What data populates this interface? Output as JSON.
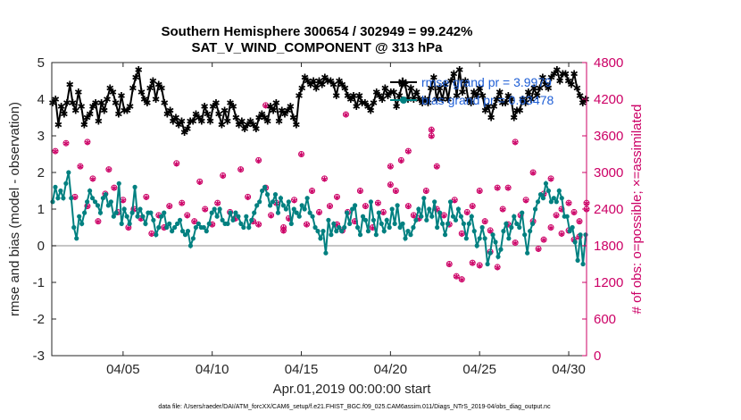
{
  "chart_data": {
    "type": "line",
    "title": "Southern Hemisphere 300654 / 302949 = 99.242%",
    "subtitle": "SAT_V_WIND_COMPONENT @ 313 hPa",
    "xlabel": "Apr.01,2019 00:00:00 start",
    "ylabel_left": "rmse and bias (model - observation)",
    "ylabel_right": "# of obs: o=possible; ×=assimilated",
    "footnote": "data file: /Users/raeder/DAI/ATM_forcXX/CAM6_setup/f.e21.FHIST_BGC.f09_025.CAM6assim.011/Diags_NTrS_2019-04/obs_diag_output.nc",
    "x_range_days": [
      1,
      31
    ],
    "ylim_left": [
      -3,
      5
    ],
    "ylim_right": [
      0,
      4800
    ],
    "left_ticks": [
      "-3",
      "-2",
      "-1",
      "0",
      "1",
      "2",
      "3",
      "4",
      "5"
    ],
    "right_ticks": [
      "0",
      "600",
      "1200",
      "1800",
      "2400",
      "3000",
      "3600",
      "4200",
      "4800"
    ],
    "x_tick_days": [
      5,
      10,
      15,
      20,
      25,
      30
    ],
    "x_tick_labels": [
      "04/05",
      "04/10",
      "04/15",
      "04/20",
      "04/25",
      "04/30"
    ],
    "legend": [
      "rmse grand pr = 3.9979",
      "bias grand pr = 0.63478"
    ],
    "colors": {
      "rmse": "#000000",
      "bias": "#008080",
      "obs": "#cc0066",
      "zero": "#b3b3b3"
    },
    "rmse": [
      3.9,
      4.0,
      3.3,
      3.8,
      3.6,
      3.9,
      4.4,
      3.9,
      3.7,
      4.2,
      3.8,
      3.3,
      3.5,
      3.6,
      3.8,
      3.9,
      3.4,
      3.9,
      3.7,
      4.0,
      4.3,
      4.2,
      3.9,
      3.6,
      4.1,
      3.7,
      3.7,
      3.8,
      4.3,
      4.6,
      4.8,
      4.2,
      4.0,
      3.9,
      4.3,
      4.5,
      4.0,
      4.4,
      4.3,
      3.9,
      3.6,
      3.7,
      3.4,
      3.5,
      3.3,
      3.4,
      3.1,
      3.2,
      3.4,
      3.4,
      3.6,
      3.5,
      3.4,
      3.8,
      3.6,
      3.4,
      3.8,
      3.9,
      3.6,
      3.3,
      3.7,
      3.4,
      3.9,
      3.8,
      3.5,
      3.3,
      3.4,
      3.2,
      3.3,
      3.4,
      3.3,
      3.2,
      3.5,
      3.6,
      3.5,
      3.4,
      3.8,
      3.7,
      3.9,
      3.4,
      3.7,
      3.6,
      3.7,
      3.8,
      3.5,
      3.3,
      4.1,
      4.3,
      4.6,
      4.5,
      4.4,
      4.5,
      4.3,
      4.5,
      4.4,
      4.6,
      4.5,
      4.5,
      4.4,
      4.1,
      4.5,
      4.4,
      4.3,
      4.1,
      4.0,
      4.1,
      3.8,
      4.1,
      3.9,
      3.9,
      3.8,
      3.7,
      3.9,
      4.2,
      4.1,
      4.0,
      4.3,
      4.1,
      4.2,
      4.2,
      3.8,
      4.1,
      4.4,
      4.4,
      4.0,
      4.3,
      4.0,
      4.2,
      4.0,
      3.9,
      4.0,
      3.9,
      4.3,
      4.6,
      4.0,
      4.3,
      4.0,
      4.4,
      4.0,
      4.5,
      4.7,
      4.1,
      4.8,
      4.2,
      4.5,
      4.0,
      3.9,
      4.2,
      4.1,
      4.3,
      4.1,
      3.7,
      3.8,
      3.5,
      3.8,
      4.0,
      4.2,
      3.9,
      3.9,
      4.1,
      4.0,
      3.5,
      3.7,
      3.7,
      4.0,
      3.9,
      4.2,
      4.0,
      4.3,
      4.1,
      4.3,
      4.6,
      4.4,
      4.3,
      4.6,
      4.7,
      4.8,
      4.5,
      4.7,
      4.7,
      4.5,
      4.4,
      4.7,
      4.3,
      4.1,
      3.9,
      4.0
    ],
    "bias": [
      1.2,
      1.6,
      1.3,
      1.5,
      1.3,
      1.7,
      2.0,
      1.3,
      0.5,
      0.2,
      0.8,
      0.6,
      0.9,
      1.2,
      1.5,
      1.3,
      1.2,
      1.1,
      0.9,
      1.3,
      1.4,
      1.1,
      1.2,
      0.8,
      0.9,
      1.7,
      0.6,
      1.0,
      0.8,
      0.6,
      0.9,
      1.6,
      0.8,
      1.0,
      0.8,
      0.6,
      0.9,
      0.9,
      0.7,
      0.3,
      0.5,
      0.8,
      0.9,
      0.5,
      0.6,
      0.4,
      0.5,
      0.6,
      0.7,
      0.4,
      0.3,
      0.4,
      0.0,
      0.2,
      0.5,
      0.6,
      0.5,
      0.5,
      0.4,
      0.6,
      0.9,
      1.0,
      0.8,
      1.0,
      0.7,
      0.6,
      0.6,
      0.9,
      0.7,
      0.9,
      0.8,
      0.6,
      0.5,
      0.8,
      0.5,
      0.7,
      0.9,
      1.1,
      1.2,
      1.5,
      1.6,
      1.4,
      1.1,
      1.2,
      1.4,
      0.9,
      1.3,
      1.1,
      1.0,
      1.2,
      0.6,
      1.0,
      0.9,
      0.8,
      1.1,
      1.0,
      1.3,
      0.9,
      0.8,
      0.5,
      0.4,
      0.2,
      0.4,
      -0.2,
      0.7,
      0.3,
      0.6,
      0.4,
      0.5,
      0.4,
      0.5,
      0.9,
      0.6,
      1.0,
      1.1,
      0.5,
      0.3,
      0.8,
      0.7,
      0.4,
      1.2,
      0.7,
      0.3,
      0.9,
      0.6,
      0.4,
      0.7,
      0.5,
      1.0,
      0.6,
      1.1,
      0.5,
      0.6,
      0.2,
      0.4,
      0.3,
      0.5,
      0.7,
      1.0,
      0.8,
      1.3,
      0.7,
      1.0,
      0.8,
      1.2,
      0.5,
      0.9,
      0.6,
      0.3,
      0.6,
      1.2,
      0.8,
      0.7,
      1.0,
      0.8,
      0.6,
      0.2,
      0.6,
      0.8,
      0.4,
      0.0,
      0.2,
      0.5,
      0.2,
      -0.5,
      -0.2,
      0.3,
      0.1,
      -0.3,
      -0.1,
      0.4,
      0.6,
      0.2,
      0.5,
      0.8,
      0.6,
      0.5,
      0.9,
      0.3,
      -0.2,
      0.4,
      0.6,
      1.0,
      1.2,
      1.4,
      1.3,
      1.7,
      1.5,
      1.2,
      1.3,
      1.2,
      1.5,
      1.3,
      0.8,
      0.8,
      0.4,
      0.5,
      0.1,
      -0.4,
      0.3,
      -0.5,
      0.3
    ],
    "obs_days": [
      1.2,
      1.8,
      2.3,
      2.6,
      3.0,
      3.3,
      3.6,
      4.0,
      4.2,
      4.5,
      4.7,
      5.0,
      5.3,
      5.6,
      6.0,
      6.3,
      6.6,
      7.0,
      7.3,
      7.6,
      8.0,
      8.3,
      8.6,
      9.0,
      9.3,
      9.6,
      10.0,
      10.3,
      10.6,
      11.0,
      11.3,
      11.6,
      12.0,
      12.3,
      12.6,
      13.0,
      13.3,
      13.6,
      14.0,
      14.3,
      14.6,
      15.0,
      15.3,
      15.6,
      16.0,
      16.3,
      16.6,
      17.0,
      17.3,
      17.6,
      18.0,
      18.3,
      18.6,
      19.0,
      19.3,
      19.6,
      20.0,
      20.3,
      20.6,
      21.0,
      21.3,
      21.6,
      22.0,
      22.3,
      22.6,
      23.0,
      23.3,
      23.6,
      24.0,
      24.3,
      24.6,
      25.0,
      25.3,
      25.6,
      26.0,
      26.3,
      26.6,
      27.0,
      27.3,
      27.6,
      28.0,
      28.3,
      28.6,
      29.0,
      29.3,
      29.6,
      30.0,
      30.3,
      30.6,
      31.0
    ],
    "obs_counts": [
      3350,
      3480,
      2600,
      3100,
      2450,
      2900,
      2200,
      2650,
      3050,
      2750,
      2350,
      2550,
      2100,
      2400,
      2250,
      2600,
      2000,
      2300,
      2100,
      2450,
      3150,
      2500,
      2300,
      2200,
      2850,
      2400,
      2150,
      2500,
      2950,
      2350,
      2250,
      3050,
      2600,
      2200,
      2150,
      2750,
      2300,
      2500,
      2050,
      2250,
      2550,
      3300,
      2150,
      2700,
      2350,
      2900,
      2450,
      2600,
      2050,
      2350,
      2200,
      2700,
      2450,
      2100,
      2500,
      2350,
      2800,
      2700,
      3200,
      2450,
      2300,
      2250,
      2700,
      3700,
      2400,
      2300,
      2150,
      2550,
      2000,
      2350,
      2450,
      2700,
      2200,
      2050,
      2750,
      2400,
      2150,
      1850,
      2300,
      2550,
      2200,
      1750,
      1900,
      2100,
      2300,
      2000,
      2500,
      1900,
      2200,
      2400
    ],
    "obs_extra": [
      {
        "day": 3.0,
        "count": 3500
      },
      {
        "day": 12.6,
        "count": 3200
      },
      {
        "day": 14.0,
        "count": 2100
      },
      {
        "day": 17.0,
        "count": 2150
      },
      {
        "day": 20.0,
        "count": 3100
      },
      {
        "day": 21.0,
        "count": 3350
      },
      {
        "day": 22.3,
        "count": 3600
      },
      {
        "day": 22.6,
        "count": 3100
      },
      {
        "day": 23.3,
        "count": 1500
      },
      {
        "day": 23.7,
        "count": 1300
      },
      {
        "day": 24.0,
        "count": 1250
      },
      {
        "day": 24.6,
        "count": 1520
      },
      {
        "day": 25.0,
        "count": 1480
      },
      {
        "day": 25.6,
        "count": 1700
      },
      {
        "day": 26.0,
        "count": 1450
      },
      {
        "day": 26.6,
        "count": 2750
      },
      {
        "day": 27.0,
        "count": 3500
      },
      {
        "day": 28.0,
        "count": 3000
      },
      {
        "day": 28.6,
        "count": 2650
      },
      {
        "day": 29.0,
        "count": 2900
      },
      {
        "day": 29.6,
        "count": 2400
      },
      {
        "day": 30.0,
        "count": 2050
      },
      {
        "day": 30.3,
        "count": 2350
      },
      {
        "day": 30.6,
        "count": 1950
      },
      {
        "day": 31.0,
        "count": 2500
      },
      {
        "day": 13.0,
        "count": 4100
      },
      {
        "day": 17.5,
        "count": 3950
      }
    ]
  }
}
